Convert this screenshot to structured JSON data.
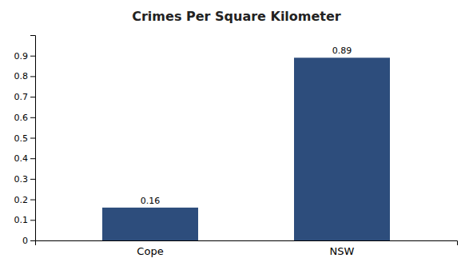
{
  "chart_data": {
    "type": "bar",
    "title": "Crimes Per Square Kilometer",
    "categories": [
      "Cope",
      "NSW"
    ],
    "values": [
      0.16,
      0.89
    ],
    "color": "#2d4d7c",
    "ylim": [
      0,
      1.0
    ],
    "yticks": [
      0,
      0.1,
      0.2,
      0.3,
      0.4,
      0.5,
      0.6,
      0.7,
      0.8,
      0.9
    ],
    "grid": false,
    "data_labels": true
  }
}
